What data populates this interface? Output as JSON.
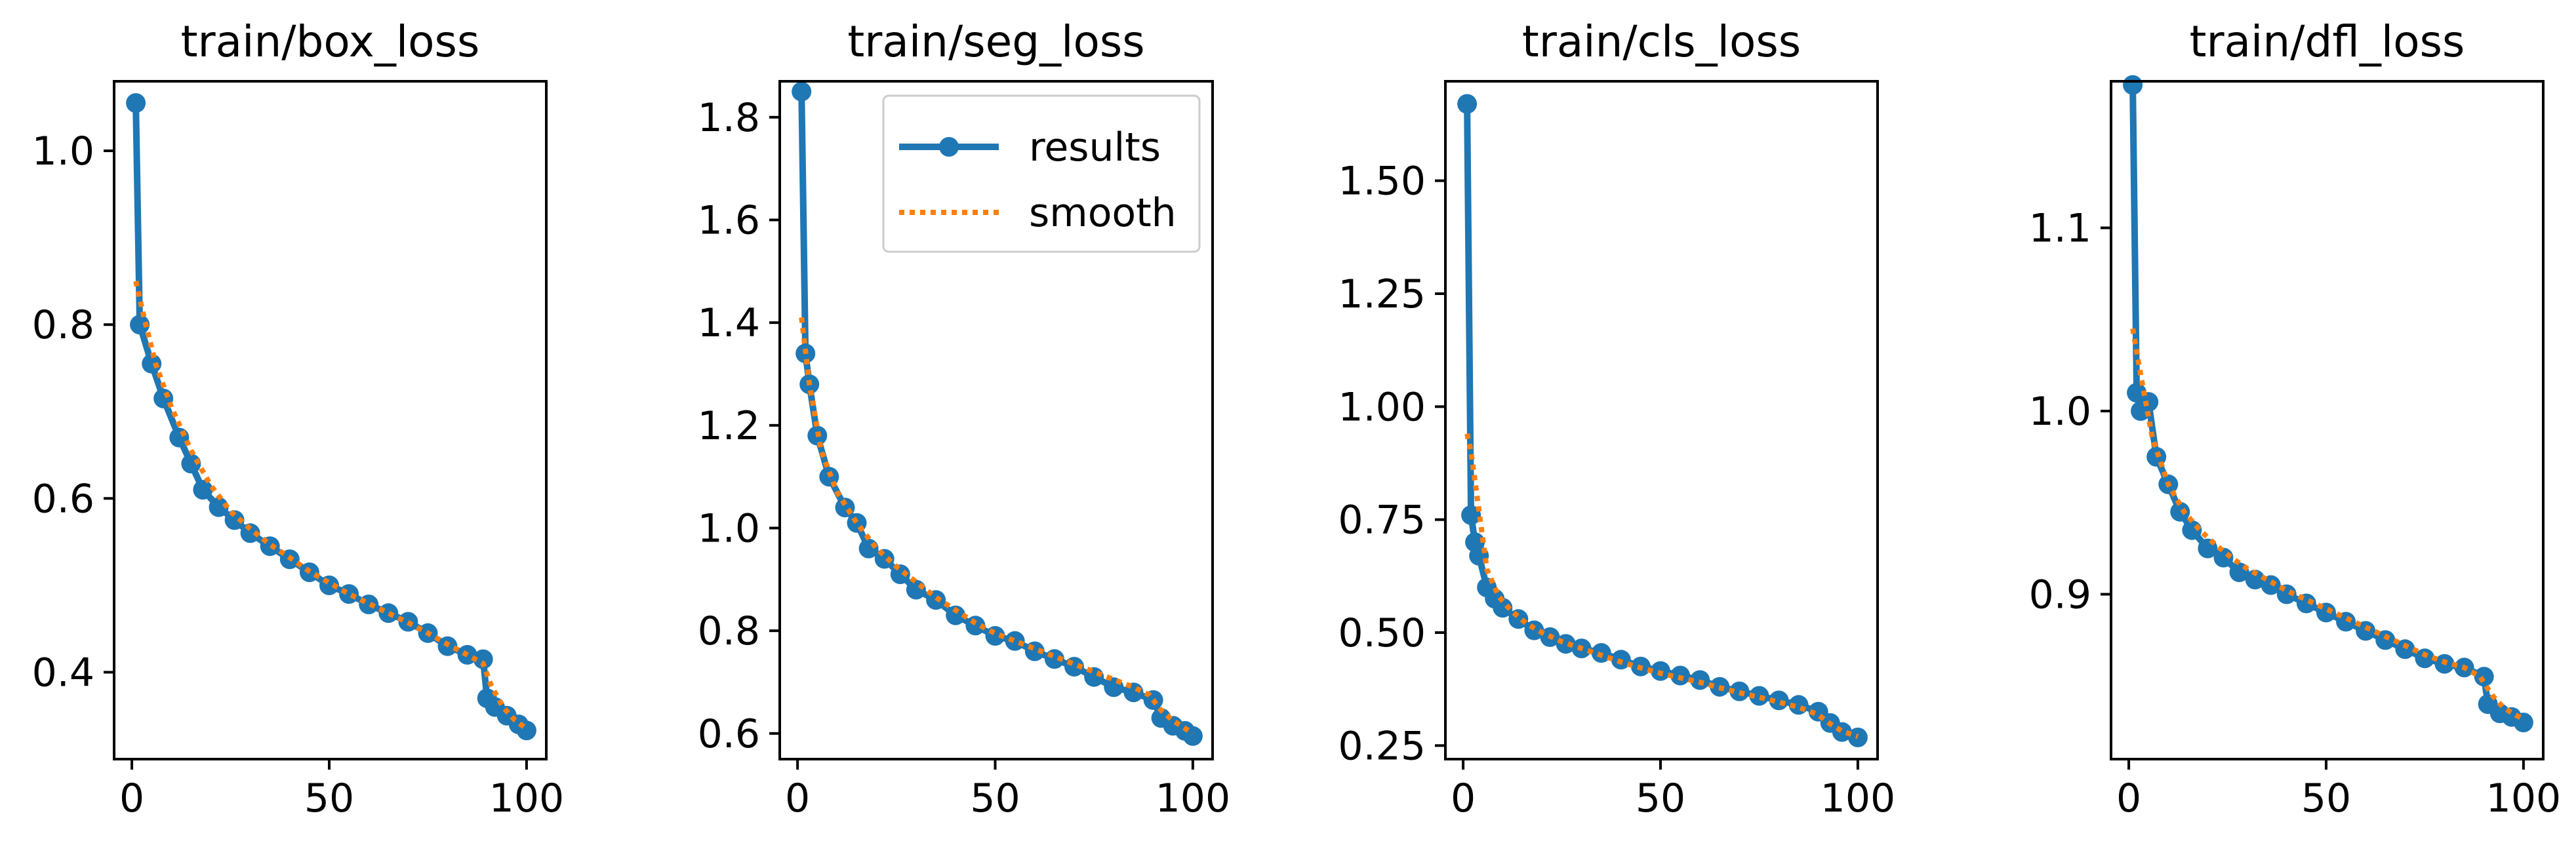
{
  "colors": {
    "results": "#1f77b4",
    "smooth": "#ff7f0e"
  },
  "legend": {
    "results_label": "results",
    "smooth_label": "smooth",
    "placement": "top-right",
    "panel": 1
  },
  "chart_data": [
    {
      "type": "line",
      "title": "train/box_loss",
      "xlabel": "",
      "ylabel": "",
      "xlim": [
        -4.5,
        105
      ],
      "ylim": [
        0.3,
        1.08
      ],
      "xticks": [
        0,
        50,
        100
      ],
      "xtick_labels": [
        "0",
        "50",
        "100"
      ],
      "yticks": [
        0.4,
        0.6,
        0.8,
        1.0
      ],
      "ytick_labels": [
        "0.4",
        "0.6",
        "0.8",
        "1.0"
      ],
      "series": [
        {
          "name": "results",
          "x": [
            1,
            2,
            5,
            8,
            12,
            15,
            18,
            22,
            26,
            30,
            35,
            40,
            45,
            50,
            55,
            60,
            65,
            70,
            75,
            80,
            85,
            89,
            90,
            92,
            95,
            98,
            100
          ],
          "values": [
            1.055,
            0.8,
            0.755,
            0.715,
            0.67,
            0.64,
            0.61,
            0.59,
            0.575,
            0.56,
            0.545,
            0.53,
            0.515,
            0.5,
            0.49,
            0.478,
            0.468,
            0.458,
            0.445,
            0.43,
            0.42,
            0.415,
            0.37,
            0.36,
            0.35,
            0.34,
            0.333
          ]
        },
        {
          "name": "smooth",
          "x": [
            1,
            3,
            6,
            10,
            15,
            20,
            25,
            30,
            35,
            40,
            45,
            50,
            55,
            60,
            65,
            70,
            75,
            80,
            85,
            89,
            91,
            94,
            97,
            100
          ],
          "values": [
            0.85,
            0.81,
            0.755,
            0.705,
            0.655,
            0.615,
            0.585,
            0.565,
            0.547,
            0.532,
            0.516,
            0.503,
            0.49,
            0.479,
            0.468,
            0.457,
            0.445,
            0.432,
            0.42,
            0.41,
            0.385,
            0.36,
            0.345,
            0.335
          ]
        }
      ]
    },
    {
      "type": "line",
      "title": "train/seg_loss",
      "xlabel": "",
      "ylabel": "",
      "xlim": [
        -4.5,
        105
      ],
      "ylim": [
        0.55,
        1.87
      ],
      "xticks": [
        0,
        50,
        100
      ],
      "xtick_labels": [
        "0",
        "50",
        "100"
      ],
      "yticks": [
        0.6,
        0.8,
        1.0,
        1.2,
        1.4,
        1.6,
        1.8
      ],
      "ytick_labels": [
        "0.6",
        "0.8",
        "1.0",
        "1.2",
        "1.4",
        "1.6",
        "1.8"
      ],
      "series": [
        {
          "name": "results",
          "x": [
            1,
            2,
            3,
            5,
            8,
            12,
            15,
            18,
            22,
            26,
            30,
            35,
            40,
            45,
            50,
            55,
            60,
            65,
            70,
            75,
            80,
            85,
            90,
            92,
            95,
            98,
            100
          ],
          "values": [
            1.85,
            1.34,
            1.28,
            1.18,
            1.1,
            1.04,
            1.01,
            0.96,
            0.94,
            0.91,
            0.88,
            0.86,
            0.83,
            0.81,
            0.79,
            0.78,
            0.76,
            0.745,
            0.73,
            0.71,
            0.69,
            0.68,
            0.665,
            0.63,
            0.615,
            0.605,
            0.595
          ]
        },
        {
          "name": "smooth",
          "x": [
            1,
            3,
            6,
            10,
            15,
            20,
            25,
            30,
            35,
            40,
            45,
            50,
            55,
            60,
            65,
            70,
            75,
            80,
            85,
            89,
            92,
            95,
            98,
            100
          ],
          "values": [
            1.41,
            1.28,
            1.15,
            1.07,
            1.01,
            0.96,
            0.925,
            0.895,
            0.865,
            0.84,
            0.815,
            0.795,
            0.78,
            0.765,
            0.75,
            0.735,
            0.72,
            0.705,
            0.69,
            0.675,
            0.645,
            0.625,
            0.61,
            0.6
          ]
        }
      ]
    },
    {
      "type": "line",
      "title": "train/cls_loss",
      "xlabel": "",
      "ylabel": "",
      "xlim": [
        -4.5,
        105
      ],
      "ylim": [
        0.22,
        1.72
      ],
      "xticks": [
        0,
        50,
        100
      ],
      "xtick_labels": [
        "0",
        "50",
        "100"
      ],
      "yticks": [
        0.25,
        0.5,
        0.75,
        1.0,
        1.25,
        1.5
      ],
      "ytick_labels": [
        "0.25",
        "0.50",
        "0.75",
        "1.00",
        "1.25",
        "1.50"
      ],
      "series": [
        {
          "name": "results",
          "x": [
            1,
            2,
            3,
            4,
            6,
            8,
            10,
            14,
            18,
            22,
            26,
            30,
            35,
            40,
            45,
            50,
            55,
            60,
            65,
            70,
            75,
            80,
            85,
            90,
            93,
            96,
            100
          ],
          "values": [
            1.67,
            0.76,
            0.7,
            0.67,
            0.6,
            0.575,
            0.555,
            0.53,
            0.505,
            0.49,
            0.475,
            0.465,
            0.455,
            0.44,
            0.425,
            0.415,
            0.405,
            0.395,
            0.38,
            0.37,
            0.36,
            0.35,
            0.34,
            0.325,
            0.3,
            0.28,
            0.268
          ]
        },
        {
          "name": "smooth",
          "x": [
            1,
            2,
            4,
            6,
            9,
            12,
            16,
            20,
            25,
            30,
            35,
            40,
            45,
            50,
            55,
            60,
            65,
            70,
            75,
            80,
            85,
            90,
            93,
            96,
            100
          ],
          "values": [
            0.94,
            0.9,
            0.77,
            0.64,
            0.58,
            0.55,
            0.52,
            0.5,
            0.48,
            0.465,
            0.45,
            0.435,
            0.422,
            0.41,
            0.4,
            0.39,
            0.378,
            0.367,
            0.357,
            0.346,
            0.335,
            0.318,
            0.298,
            0.282,
            0.27
          ]
        }
      ]
    },
    {
      "type": "line",
      "title": "train/dfl_loss",
      "xlabel": "",
      "ylabel": "",
      "xlim": [
        -4.5,
        105
      ],
      "ylim": [
        0.81,
        1.18
      ],
      "xticks": [
        0,
        50,
        100
      ],
      "xtick_labels": [
        "0",
        "50",
        "100"
      ],
      "yticks": [
        0.9,
        1.0,
        1.1
      ],
      "ytick_labels": [
        "0.9",
        "1.0",
        "1.1"
      ],
      "series": [
        {
          "name": "results",
          "x": [
            1,
            2,
            3,
            5,
            7,
            10,
            13,
            16,
            20,
            24,
            28,
            32,
            36,
            40,
            45,
            50,
            55,
            60,
            65,
            70,
            75,
            80,
            85,
            90,
            91,
            94,
            97,
            100
          ],
          "values": [
            1.178,
            1.01,
            1.0,
            1.005,
            0.975,
            0.96,
            0.945,
            0.935,
            0.925,
            0.92,
            0.912,
            0.908,
            0.905,
            0.9,
            0.895,
            0.89,
            0.885,
            0.88,
            0.875,
            0.87,
            0.865,
            0.862,
            0.86,
            0.855,
            0.84,
            0.835,
            0.833,
            0.83
          ]
        },
        {
          "name": "smooth",
          "x": [
            1,
            3,
            6,
            10,
            14,
            18,
            22,
            26,
            30,
            35,
            40,
            45,
            50,
            55,
            60,
            65,
            70,
            75,
            80,
            85,
            89,
            92,
            95,
            98,
            100
          ],
          "values": [
            1.045,
            1.02,
            0.985,
            0.96,
            0.945,
            0.935,
            0.927,
            0.92,
            0.914,
            0.908,
            0.902,
            0.897,
            0.892,
            0.887,
            0.882,
            0.877,
            0.872,
            0.867,
            0.863,
            0.86,
            0.855,
            0.845,
            0.838,
            0.834,
            0.832
          ]
        }
      ]
    }
  ]
}
